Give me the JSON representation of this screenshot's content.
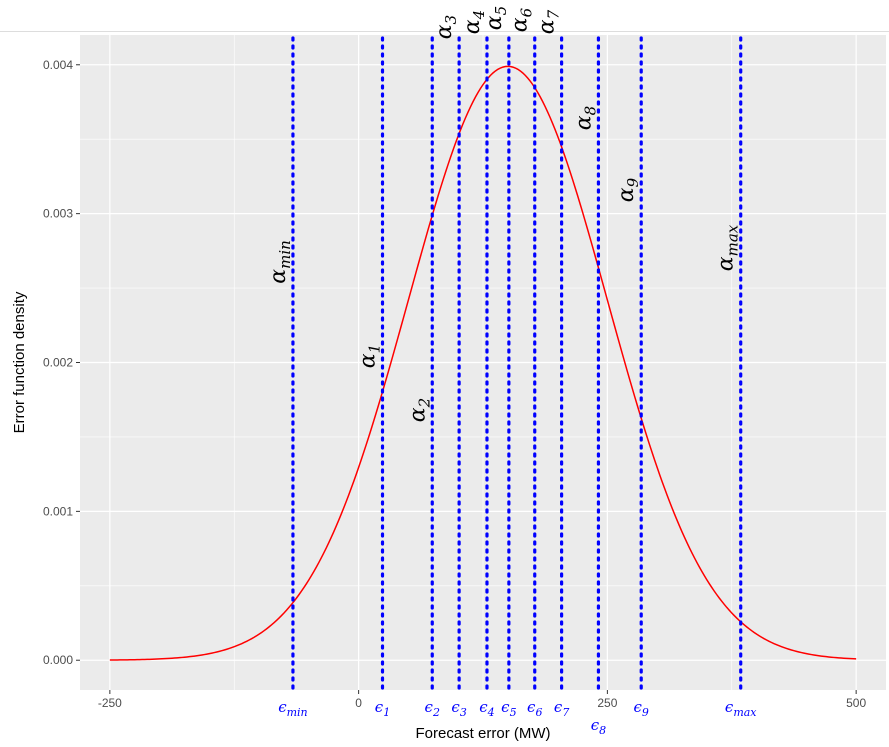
{
  "chart_data": {
    "type": "line",
    "title": "",
    "xlabel": "Forecast error (MW)",
    "ylabel": "Error function density",
    "xlim": [
      -280,
      530
    ],
    "ylim": [
      -0.0002,
      0.0042
    ],
    "x_ticks": [
      -250,
      0,
      250,
      500
    ],
    "x_tick_labels": [
      "-250",
      "0",
      "250",
      "500"
    ],
    "y_ticks": [
      0,
      0.001,
      0.002,
      0.003,
      0.004
    ],
    "y_tick_labels": [
      "0.000",
      "0.001",
      "0.002",
      "0.003",
      "0.004"
    ],
    "grid": true,
    "legend": "none",
    "curve": {
      "mean": 150,
      "sd": 100,
      "x_range": [
        -250,
        500
      ],
      "color": "#ff0000"
    },
    "vlines": [
      {
        "x": -66,
        "alpha_base": "α",
        "alpha_sub": "min",
        "eps_base": "ϵ",
        "eps_sub": "min"
      },
      {
        "x": 24,
        "alpha_base": "α",
        "alpha_sub": "1",
        "eps_base": "ϵ",
        "eps_sub": "1"
      },
      {
        "x": 74,
        "alpha_base": "α",
        "alpha_sub": "2",
        "eps_base": "ϵ",
        "eps_sub": "2"
      },
      {
        "x": 101,
        "alpha_base": "α",
        "alpha_sub": "3",
        "eps_base": "ϵ",
        "eps_sub": "3"
      },
      {
        "x": 129,
        "alpha_base": "α",
        "alpha_sub": "4",
        "eps_base": "ϵ",
        "eps_sub": "4"
      },
      {
        "x": 151,
        "alpha_base": "α",
        "alpha_sub": "5",
        "eps_base": "ϵ",
        "eps_sub": "5"
      },
      {
        "x": 177,
        "alpha_base": "α",
        "alpha_sub": "6",
        "eps_base": "ϵ",
        "eps_sub": "6"
      },
      {
        "x": 204,
        "alpha_base": "α",
        "alpha_sub": "7",
        "eps_base": "ϵ",
        "eps_sub": "7"
      },
      {
        "x": 241,
        "alpha_base": "α",
        "alpha_sub": "8",
        "eps_base": "ϵ",
        "eps_sub": "8"
      },
      {
        "x": 284,
        "alpha_base": "α",
        "alpha_sub": "9",
        "eps_base": "ϵ",
        "eps_sub": "9"
      },
      {
        "x": 384,
        "alpha_base": "α",
        "alpha_sub": "max",
        "eps_base": "ϵ",
        "eps_sub": "max"
      }
    ],
    "vline_color": "#0000ff",
    "panel_color": "#ebebeb",
    "grid_color": "#ffffff"
  }
}
